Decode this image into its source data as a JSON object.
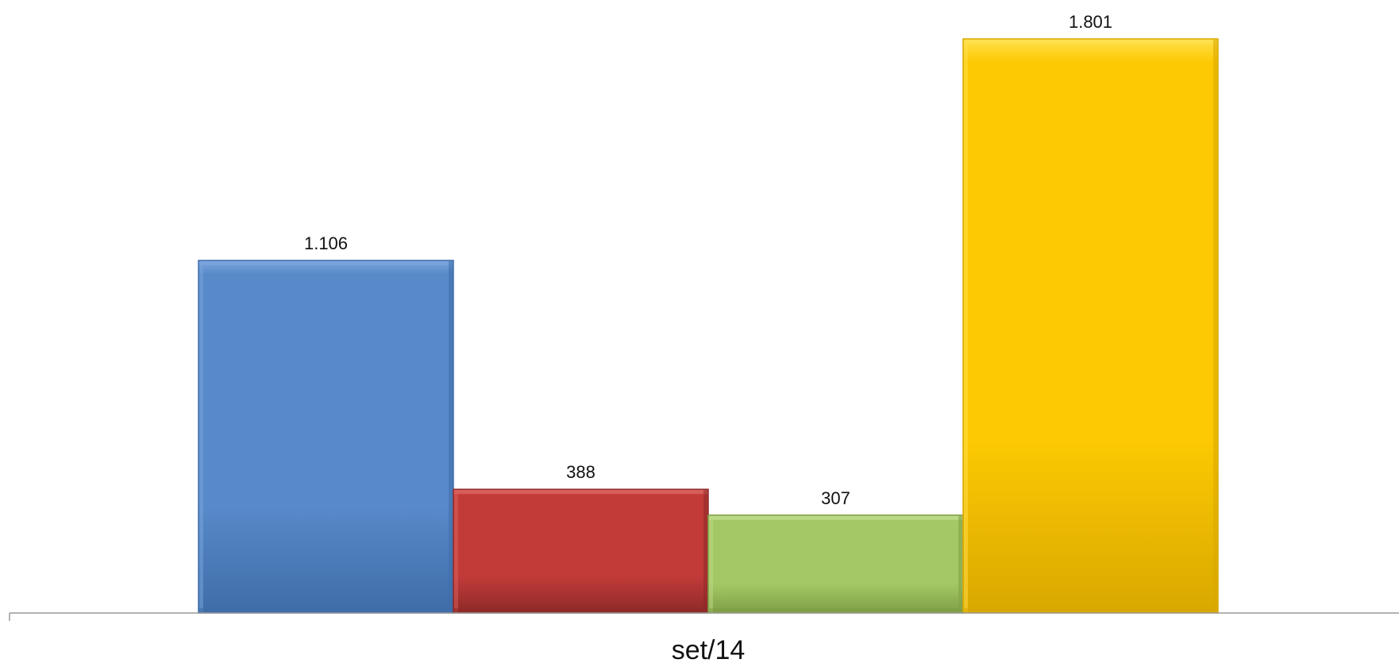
{
  "chart_data": {
    "type": "bar",
    "categories": [
      "set/14"
    ],
    "series": [
      {
        "values": [
          1106
        ],
        "value_label": "1.106",
        "color": "#5889C9",
        "color_dark": "#3E6DA8",
        "color_light": "#7AA5DC"
      },
      {
        "values": [
          388
        ],
        "value_label": "388",
        "color": "#C23B39",
        "color_dark": "#8E2A28",
        "color_light": "#D9615E"
      },
      {
        "values": [
          307
        ],
        "value_label": "307",
        "color": "#A4C865",
        "color_dark": "#7F9F45",
        "color_light": "#BDDA88"
      },
      {
        "values": [
          1801
        ],
        "value_label": "1.801",
        "color": "#FCC903",
        "color_dark": "#D9A800",
        "color_light": "#FFE04D"
      }
    ],
    "title": "",
    "xlabel": "",
    "ylabel": "",
    "ylim": [
      0,
      1801
    ],
    "grid": false,
    "legend": "none"
  }
}
